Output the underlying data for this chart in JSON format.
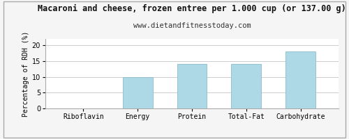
{
  "title": "Macaroni and cheese, frozen entree per 1.000 cup (or 137.00 g)",
  "subtitle": "www.dietandfitnesstoday.com",
  "categories": [
    "Riboflavin",
    "Energy",
    "Protein",
    "Total-Fat",
    "Carbohydrate"
  ],
  "values": [
    0,
    10,
    14,
    14,
    18
  ],
  "bar_color": "#add8e6",
  "bar_edge_color": "#8bbccc",
  "ylabel": "Percentage of RDH (%)",
  "ylim": [
    0,
    22
  ],
  "yticks": [
    0,
    5,
    10,
    15,
    20
  ],
  "background_color": "#f5f5f5",
  "plot_bg_color": "#ffffff",
  "grid_color": "#cccccc",
  "title_fontsize": 8.5,
  "subtitle_fontsize": 7.5,
  "axis_label_fontsize": 7,
  "tick_fontsize": 7,
  "border_color": "#aaaaaa"
}
